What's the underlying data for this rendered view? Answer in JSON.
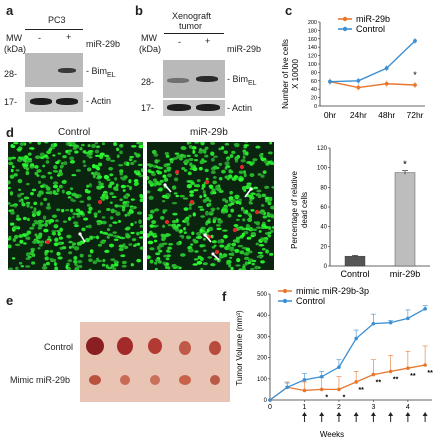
{
  "panels": {
    "a": {
      "letter": "a",
      "mw_label": "MW",
      "kda_label": "(kDa)",
      "cell_line": "PC3",
      "minus": "-",
      "plus": "+",
      "treatment": "miR-29b",
      "mw_top": "28-",
      "mw_bottom": "17-",
      "band_top": "Bim",
      "band_top_sub": "EL",
      "band_bottom": "Actin"
    },
    "b": {
      "letter": "b",
      "mw_label": "MW",
      "kda_label": "(kDa)",
      "sample_line1": "Xenograft",
      "sample_line2": "tumor",
      "minus": "-",
      "plus": "+",
      "treatment": "miR-29b",
      "mw_top": "28-",
      "mw_bottom": "17-",
      "band_top": "Bim",
      "band_top_sub": "EL",
      "band_bottom": "Actin"
    },
    "c": {
      "letter": "c"
    },
    "d": {
      "letter": "d",
      "image_left_title": "Control",
      "image_right_title": "miR-29b"
    },
    "e": {
      "letter": "e",
      "row_top": "Control",
      "row_bottom": "Mimic miR-29b"
    },
    "f": {
      "letter": "f"
    }
  },
  "chart_data": [
    {
      "id": "c",
      "type": "line",
      "categories": [
        "0hr",
        "24hr",
        "48hr",
        "72hr"
      ],
      "series": [
        {
          "name": "miR-29b",
          "color": "#e8772e",
          "values": [
            58,
            44,
            53,
            50
          ]
        },
        {
          "name": "Control",
          "color": "#3b8fd4",
          "values": [
            58,
            60,
            90,
            155
          ]
        }
      ],
      "ylabel_line1": "Number of live cells",
      "ylabel_line2": "X 10000",
      "ylim": [
        0,
        200
      ],
      "yticks": [
        "0",
        "20",
        "40",
        "60",
        "80",
        "100",
        "120",
        "140",
        "160",
        "180",
        "200"
      ],
      "annotations": [
        {
          "text": "*",
          "x": "72hr",
          "y": 62
        }
      ],
      "legend": "top-right"
    },
    {
      "id": "d",
      "type": "bar",
      "categories": [
        "Control",
        "mir-29b"
      ],
      "values": [
        10,
        95
      ],
      "errors": [
        0.8,
        2
      ],
      "colors": [
        "#555555",
        "#bdbdbd"
      ],
      "ylabel_line1": "Percentage of relative",
      "ylabel_line2": "dead cells",
      "ylim": [
        0,
        120
      ],
      "yticks": [
        "0",
        "20",
        "40",
        "60",
        "80",
        "100",
        "120"
      ],
      "annotations": [
        {
          "text": "*",
          "x": "mir-29b",
          "y": 100
        }
      ]
    },
    {
      "id": "f",
      "type": "line",
      "x": [
        0,
        0.5,
        1,
        1.5,
        2,
        2.5,
        3,
        3.5,
        4,
        4.5
      ],
      "series": [
        {
          "name": "mimic miR-29b-3p",
          "color": "#e8772e",
          "values": [
            0,
            60,
            45,
            50,
            50,
            85,
            120,
            135,
            150,
            165
          ],
          "errors": [
            0,
            25,
            40,
            55,
            60,
            50,
            70,
            75,
            80,
            90
          ]
        },
        {
          "name": "Control",
          "color": "#3b8fd4",
          "values": [
            0,
            60,
            95,
            110,
            155,
            290,
            360,
            365,
            385,
            430
          ],
          "errors": [
            0,
            20,
            30,
            25,
            35,
            40,
            45,
            10,
            40,
            15
          ]
        }
      ],
      "xlabel": "Weeks",
      "xtick_labels": [
        "0",
        "1",
        "2",
        "3",
        "4"
      ],
      "ylabel": "Tumor Volume (mm³)",
      "ylim": [
        0,
        500
      ],
      "yticks": [
        "0",
        "100",
        "200",
        "300",
        "400",
        "500"
      ],
      "annotations": [
        "*",
        "*",
        "**",
        "**",
        "**",
        "**",
        "**"
      ],
      "arrow_weeks": [
        1,
        1.5,
        2,
        2.5,
        3,
        3.5,
        4,
        4.5
      ],
      "legend": "top-left"
    }
  ]
}
